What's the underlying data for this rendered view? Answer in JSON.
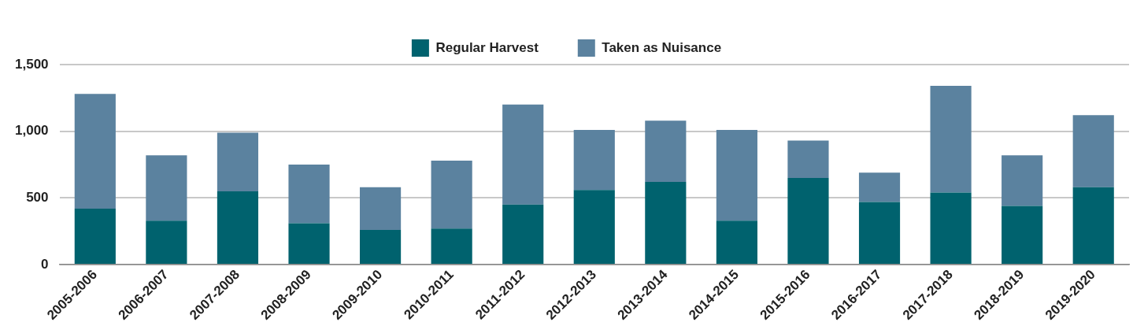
{
  "chart_data": {
    "type": "bar",
    "stacked": true,
    "categories": [
      "2005-2006",
      "2006-2007",
      "2007-2008",
      "2008-2009",
      "2009-2010",
      "2010-2011",
      "2011-2012",
      "2012-2013",
      "2013-2014",
      "2014-2015",
      "2015-2016",
      "2016-2017",
      "2017-2018",
      "2018-2019",
      "2019-2020"
    ],
    "series": [
      {
        "name": "Regular Harvest",
        "color": "#00626e",
        "values": [
          420,
          330,
          550,
          310,
          260,
          270,
          450,
          560,
          620,
          330,
          650,
          470,
          540,
          440,
          580
        ]
      },
      {
        "name": "Taken as Nuisance",
        "color": "#5b829f",
        "values": [
          860,
          490,
          440,
          440,
          320,
          510,
          750,
          450,
          460,
          680,
          280,
          220,
          800,
          380,
          540
        ]
      }
    ],
    "ylim": [
      0,
      1500
    ],
    "yticks": [
      0,
      500,
      {
        "value": 1000,
        "label": "1,000"
      },
      {
        "value": 1500,
        "label": "1,500"
      }
    ],
    "grid": "y",
    "legend": "top"
  }
}
